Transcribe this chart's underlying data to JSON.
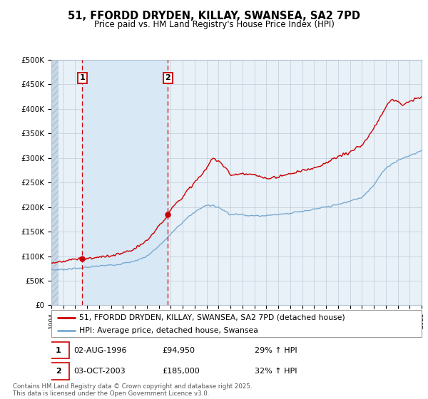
{
  "title_line1": "51, FFORDD DRYDEN, KILLAY, SWANSEA, SA2 7PD",
  "title_line2": "Price paid vs. HM Land Registry's House Price Index (HPI)",
  "ylim": [
    0,
    500000
  ],
  "yticks": [
    0,
    50000,
    100000,
    150000,
    200000,
    250000,
    300000,
    350000,
    400000,
    450000,
    500000
  ],
  "ytick_labels": [
    "£0",
    "£50K",
    "£100K",
    "£150K",
    "£200K",
    "£250K",
    "£300K",
    "£350K",
    "£400K",
    "£450K",
    "£500K"
  ],
  "x_start_year": 1994,
  "x_end_year": 2025,
  "sale1_year": 1996.58,
  "sale1_price": 94950,
  "sale2_year": 2003.75,
  "sale2_price": 185000,
  "red_color": "#cc0000",
  "blue_color": "#7aaad0",
  "shade_color": "#d8e8f5",
  "bg_color": "#e8f0f8",
  "hatch_color": "#c8d8e8",
  "grid_color": "#c0ccd8",
  "legend_label_red": "51, FFORDD DRYDEN, KILLAY, SWANSEA, SA2 7PD (detached house)",
  "legend_label_blue": "HPI: Average price, detached house, Swansea",
  "ann1_label": "1",
  "ann1_date": "02-AUG-1996",
  "ann1_price": "£94,950",
  "ann1_hpi": "29% ↑ HPI",
  "ann2_label": "2",
  "ann2_date": "03-OCT-2003",
  "ann2_price": "£185,000",
  "ann2_hpi": "32% ↑ HPI",
  "footer": "Contains HM Land Registry data © Crown copyright and database right 2025.\nThis data is licensed under the Open Government Licence v3.0."
}
